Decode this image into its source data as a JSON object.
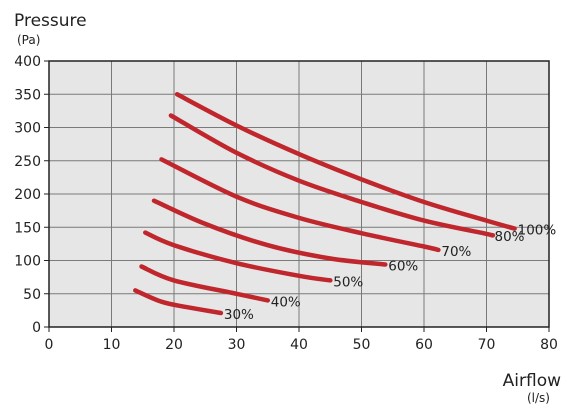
{
  "chart_data": {
    "type": "line",
    "ylabel": "Pressure",
    "yunit": "(Pa)",
    "xlabel": "Airflow",
    "xunit": "(l/s)",
    "xlim": [
      0,
      80
    ],
    "ylim": [
      0,
      400
    ],
    "xticks": [
      0,
      10,
      20,
      30,
      40,
      50,
      60,
      70,
      80
    ],
    "yticks": [
      0,
      50,
      100,
      150,
      200,
      250,
      300,
      350,
      400
    ],
    "grid": true,
    "colors": {
      "curve": "#c0272d",
      "plot_bg": "#e6e6e6",
      "grid": "#7a7a7a"
    },
    "series": [
      {
        "name": "100%",
        "points": [
          [
            20.5,
            350
          ],
          [
            30,
            303
          ],
          [
            40,
            260
          ],
          [
            50,
            222
          ],
          [
            60,
            188
          ],
          [
            70,
            160
          ],
          [
            74.5,
            148
          ]
        ]
      },
      {
        "name": "80%",
        "points": [
          [
            19.5,
            318
          ],
          [
            30,
            262
          ],
          [
            40,
            220
          ],
          [
            50,
            188
          ],
          [
            60,
            160
          ],
          [
            70,
            140
          ],
          [
            70.8,
            138
          ]
        ]
      },
      {
        "name": "70%",
        "points": [
          [
            18,
            252
          ],
          [
            30,
            196
          ],
          [
            40,
            164
          ],
          [
            50,
            141
          ],
          [
            60,
            121
          ],
          [
            62.3,
            116
          ]
        ]
      },
      {
        "name": "60%",
        "points": [
          [
            16.8,
            190
          ],
          [
            25,
            155
          ],
          [
            35,
            123
          ],
          [
            45,
            103
          ],
          [
            53.8,
            94
          ]
        ]
      },
      {
        "name": "50%",
        "points": [
          [
            15.4,
            142
          ],
          [
            20,
            123
          ],
          [
            30,
            96
          ],
          [
            40,
            77
          ],
          [
            45,
            70
          ]
        ]
      },
      {
        "name": "40%",
        "points": [
          [
            14.8,
            91
          ],
          [
            20,
            70
          ],
          [
            30,
            50
          ],
          [
            35,
            40
          ]
        ]
      },
      {
        "name": "30%",
        "points": [
          [
            13.8,
            55
          ],
          [
            18,
            38
          ],
          [
            22,
            30
          ],
          [
            27.5,
            21
          ]
        ]
      }
    ]
  }
}
